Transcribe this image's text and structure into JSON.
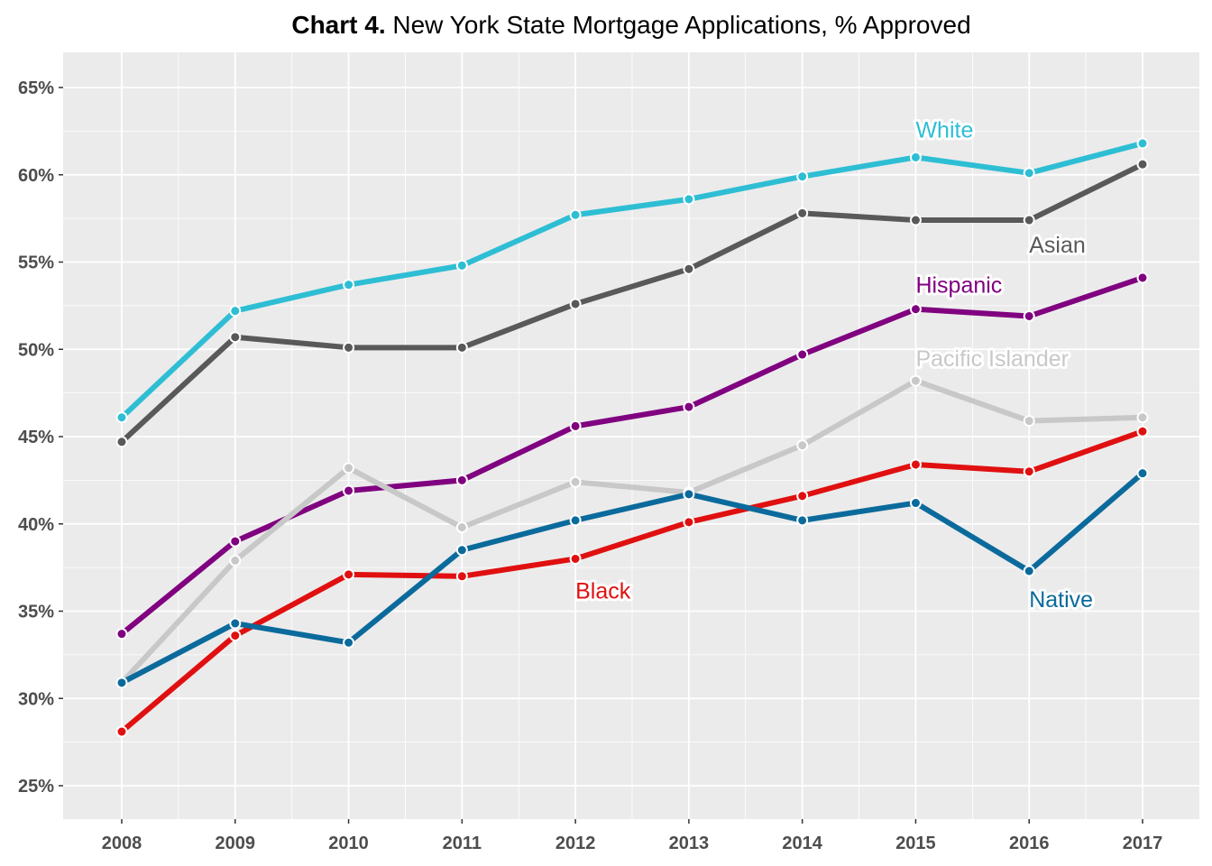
{
  "title": {
    "prefix": "Chart 4.",
    "text": " New York State Mortgage Applications, % Approved"
  },
  "chart_data": {
    "type": "line",
    "x": [
      "2008",
      "2009",
      "2010",
      "2011",
      "2012",
      "2013",
      "2014",
      "2015",
      "2016",
      "2017"
    ],
    "ylim": [
      0.23,
      0.67
    ],
    "yticks": [
      0.25,
      0.3,
      0.35,
      0.4,
      0.45,
      0.5,
      0.55,
      0.6,
      0.65
    ],
    "ytick_labels": [
      "25%",
      "30%",
      "35%",
      "40%",
      "45%",
      "50%",
      "55%",
      "60%",
      "65%"
    ],
    "grid": true,
    "legend": "direct labels",
    "series": [
      {
        "name": "White",
        "color": "#2ebed4",
        "label_anchor": {
          "x": "2015",
          "y": 0.626
        },
        "values": [
          0.461,
          0.522,
          0.537,
          0.548,
          0.577,
          0.586,
          0.599,
          0.61,
          0.601,
          0.618
        ]
      },
      {
        "name": "Asian",
        "color": "#595959",
        "label_anchor": {
          "x": "2016",
          "y": 0.56
        },
        "values": [
          0.447,
          0.507,
          0.501,
          0.501,
          0.526,
          0.546,
          0.578,
          0.574,
          0.574,
          0.606
        ]
      },
      {
        "name": "Hispanic",
        "color": "#800080",
        "label_anchor": {
          "x": "2015",
          "y": 0.537
        },
        "values": [
          0.337,
          0.39,
          0.419,
          0.425,
          0.456,
          0.467,
          0.497,
          0.523,
          0.519,
          0.541
        ]
      },
      {
        "name": "Pacific Islander",
        "color": "#c8c8c8",
        "label_anchor": {
          "x": "2015",
          "y": 0.495
        },
        "values": [
          0.309,
          0.379,
          0.432,
          0.398,
          0.424,
          0.418,
          0.445,
          0.482,
          0.459,
          0.461
        ]
      },
      {
        "name": "Black",
        "color": "#e01010",
        "label_anchor": {
          "x": "2012",
          "y": 0.362
        },
        "values": [
          0.281,
          0.336,
          0.371,
          0.37,
          0.38,
          0.401,
          0.416,
          0.434,
          0.43,
          0.453
        ]
      },
      {
        "name": "Native",
        "color": "#0b6a9c",
        "label_anchor": {
          "x": "2016",
          "y": 0.357
        },
        "values": [
          0.309,
          0.343,
          0.332,
          0.385,
          0.402,
          0.417,
          0.402,
          0.412,
          0.373,
          0.429
        ]
      }
    ]
  },
  "colors": {
    "panel_background": "#ebebeb",
    "gridline": "#ffffff",
    "marker_edge": "#ffffff"
  }
}
